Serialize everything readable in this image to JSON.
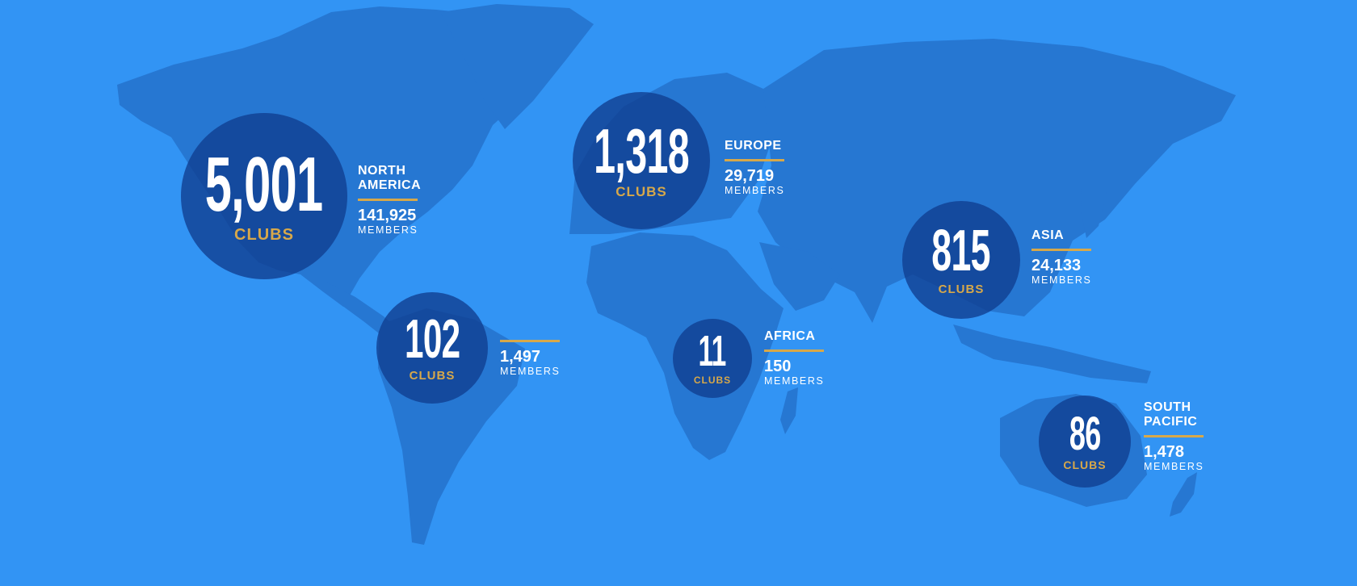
{
  "colors": {
    "ocean": "#3294F4",
    "land": "#2677D2",
    "circle": "#103E91",
    "accent": "#D7A84A",
    "text": "#FFFFFF"
  },
  "regions": [
    {
      "id": "north-america",
      "name": "NORTH\nAMERICA",
      "clubs": "5,001",
      "clubs_label": "CLUBS",
      "members": "141,925",
      "members_label": "MEMBERS"
    },
    {
      "id": "europe",
      "name": "EUROPE",
      "clubs": "1,318",
      "clubs_label": "CLUBS",
      "members": "29,719",
      "members_label": "MEMBERS"
    },
    {
      "id": "asia",
      "name": "ASIA",
      "clubs": "815",
      "clubs_label": "CLUBS",
      "members": "24,133",
      "members_label": "MEMBERS"
    },
    {
      "id": "south-america",
      "name": "",
      "clubs": "102",
      "clubs_label": "CLUBS",
      "members": "1,497",
      "members_label": "MEMBERS"
    },
    {
      "id": "africa",
      "name": "AFRICA",
      "clubs": "11",
      "clubs_label": "CLUBS",
      "members": "150",
      "members_label": "MEMBERS"
    },
    {
      "id": "south-pacific",
      "name": "SOUTH\nPACIFIC",
      "clubs": "86",
      "clubs_label": "CLUBS",
      "members": "1,478",
      "members_label": "MEMBERS"
    }
  ]
}
